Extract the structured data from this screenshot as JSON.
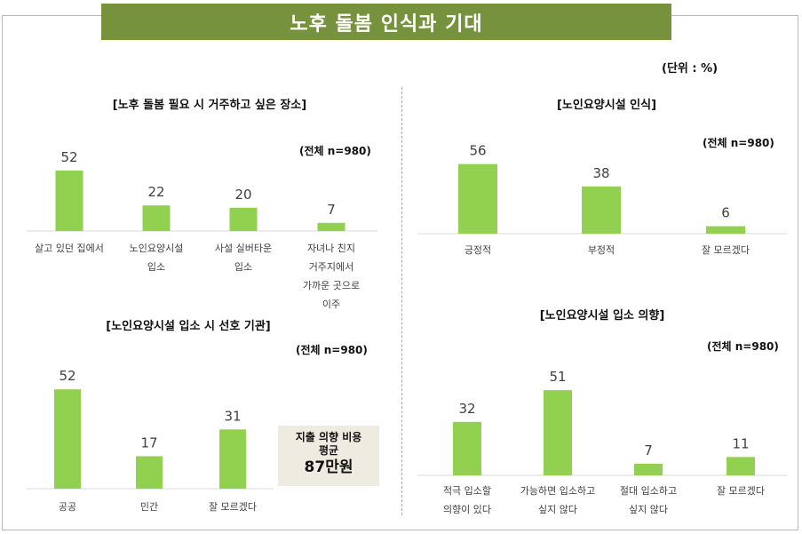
{
  "header": {
    "title": "노후 돌봄 인식과 기대",
    "unit": "(단위 : %)"
  },
  "callout": {
    "line1": "지출 의향 비용",
    "line2": "평균",
    "amount": "87만원"
  },
  "colors": {
    "bar": "#92d050",
    "title_bg": "#76923c"
  },
  "chart_data": [
    {
      "type": "bar",
      "title": "[노후 돌봄 필요 시 거주하고 싶은 장소]",
      "note": "(전체 n=980)",
      "categories": [
        [
          "살고 있던 집에서"
        ],
        [
          "노인요양시설",
          "입소"
        ],
        [
          "사설 실버타운",
          "입소"
        ],
        [
          "자녀나 친지",
          "거주지에서",
          "가까운 곳으로",
          "이주"
        ]
      ],
      "values": [
        52,
        22,
        20,
        7
      ]
    },
    {
      "type": "bar",
      "title": "[노인요양시설 인식]",
      "note": "(전체 n=980)",
      "categories": [
        [
          "긍정적"
        ],
        [
          "부정적"
        ],
        [
          "잘 모르겠다"
        ]
      ],
      "values": [
        56,
        38,
        6
      ]
    },
    {
      "type": "bar",
      "title": "[노인요양시설 입소 시 선호 기관]",
      "note": "(전체 n=980)",
      "categories": [
        [
          "공공"
        ],
        [
          "민간"
        ],
        [
          "잘 모르겠다"
        ]
      ],
      "values": [
        52,
        17,
        31
      ]
    },
    {
      "type": "bar",
      "title": "[노인요양시설 입소 의향]",
      "note": "(전체 n=980)",
      "categories": [
        [
          "적극 입소할",
          "의향이 있다"
        ],
        [
          "가능하면 입소하고",
          "싶지 않다"
        ],
        [
          "절대 입소하고",
          "싶지 않다"
        ],
        [
          "잘 모르겠다"
        ]
      ],
      "values": [
        32,
        51,
        7,
        11
      ]
    }
  ]
}
